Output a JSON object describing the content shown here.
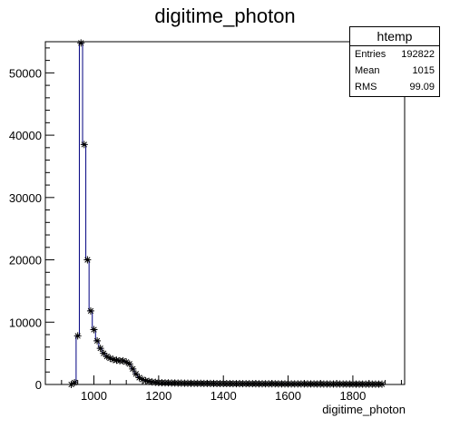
{
  "chart_data": {
    "type": "histogram",
    "title": "digitime_photon",
    "xlabel": "digitime_photon",
    "ylabel": "",
    "xlim": [
      850,
      1960
    ],
    "ylim": [
      0,
      55000
    ],
    "x_ticks": [
      1000,
      1200,
      1400,
      1600,
      1800
    ],
    "y_ticks": [
      0,
      10000,
      20000,
      30000,
      40000,
      50000
    ],
    "y_tick_labels": [
      "0",
      "10000",
      "20000",
      "30000",
      "40000",
      "50000"
    ],
    "x_tick_labels": [
      "1000",
      "1200",
      "1400",
      "1600",
      "1800"
    ],
    "bin_width": 10,
    "x": [
      930,
      940,
      950,
      960,
      970,
      980,
      990,
      1000,
      1010,
      1020,
      1030,
      1040,
      1050,
      1060,
      1070,
      1080,
      1090,
      1100,
      1110,
      1120,
      1130,
      1140,
      1150,
      1160,
      1170,
      1180,
      1190,
      1200,
      1210,
      1220,
      1230,
      1240,
      1250,
      1260,
      1270,
      1280,
      1290,
      1300,
      1310,
      1320,
      1330,
      1340,
      1350,
      1360,
      1370,
      1380,
      1390,
      1400,
      1410,
      1420,
      1430,
      1440,
      1450,
      1460,
      1470,
      1480,
      1490,
      1500,
      1510,
      1520,
      1530,
      1540,
      1550,
      1560,
      1570,
      1580,
      1590,
      1600,
      1610,
      1620,
      1630,
      1640,
      1650,
      1660,
      1670,
      1680,
      1690,
      1700,
      1710,
      1720,
      1730,
      1740,
      1750,
      1760,
      1770,
      1780,
      1790,
      1800,
      1810,
      1820,
      1830,
      1840,
      1850,
      1860,
      1870,
      1880,
      1890
    ],
    "values": [
      0,
      300,
      7800,
      54800,
      38500,
      20000,
      11800,
      8800,
      7000,
      5800,
      5000,
      4500,
      4200,
      4000,
      3900,
      3800,
      3800,
      3600,
      3300,
      2500,
      1700,
      1100,
      800,
      600,
      500,
      400,
      350,
      300,
      280,
      260,
      250,
      240,
      230,
      220,
      210,
      200,
      200,
      190,
      185,
      180,
      175,
      170,
      165,
      160,
      155,
      150,
      150,
      145,
      140,
      140,
      135,
      130,
      130,
      125,
      125,
      120,
      120,
      115,
      115,
      110,
      110,
      110,
      105,
      105,
      100,
      100,
      100,
      95,
      95,
      95,
      90,
      90,
      90,
      85,
      85,
      85,
      80,
      80,
      80,
      75,
      75,
      75,
      70,
      70,
      70,
      65,
      65,
      65,
      60,
      60,
      60,
      55,
      55,
      55,
      50,
      50,
      50
    ],
    "grid": false,
    "series": [
      {
        "name": "htemp",
        "color": "#000080",
        "marker": "asterisk"
      }
    ]
  },
  "stats_box": {
    "title": "htemp",
    "rows": [
      {
        "label": "Entries",
        "value": "192822"
      },
      {
        "label": "Mean",
        "value": "1015"
      },
      {
        "label": "RMS",
        "value": "99.09"
      }
    ]
  }
}
